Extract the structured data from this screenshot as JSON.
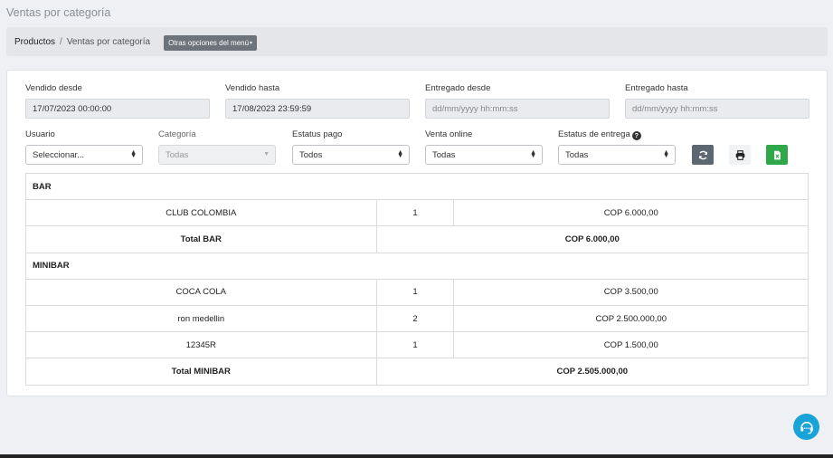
{
  "page": {
    "title": "Ventas por categoría"
  },
  "breadcrumb": {
    "root": "Productos",
    "separator": "/",
    "current": "Ventas por categoría",
    "menu_button": "Otras opciones del menú",
    "menu_caret": "▾"
  },
  "filters": {
    "sold_from": {
      "label": "Vendido desde",
      "value": "17/07/2023 00:00:00"
    },
    "sold_to": {
      "label": "Vendido hasta",
      "value": "17/08/2023 23:59:59"
    },
    "delivered_from": {
      "label": "Entregado desde",
      "placeholder": "dd/mm/yyyy hh:mm:ss"
    },
    "delivered_to": {
      "label": "Entregado hasta",
      "placeholder": "dd/mm/yyyy hh:mm:ss"
    },
    "user": {
      "label": "Usuario",
      "value": "Seleccionar..."
    },
    "category": {
      "label": "Categoría",
      "value": "Todas"
    },
    "payment_status": {
      "label": "Estatus pago",
      "value": "Todos"
    },
    "online_sale": {
      "label": "Venta online",
      "value": "Todas"
    },
    "delivery_status": {
      "label": "Estatus de entrega",
      "value": "Todas",
      "help_icon": "?"
    }
  },
  "icons": {
    "refresh": "refresh-icon",
    "print": "print-icon",
    "excel": "excel-icon",
    "support": "headset-icon"
  },
  "colors": {
    "excel_button": "#2fa84a",
    "refresh_button": "#5d6771",
    "support_button": "#1aa3d9"
  },
  "report": {
    "groups": [
      {
        "name": "BAR",
        "rows": [
          {
            "product": "CLUB COLOMBIA",
            "qty": "1",
            "amount": "COP 6.000,00"
          }
        ],
        "total_label": "Total BAR",
        "total_amount": "COP 6.000,00"
      },
      {
        "name": "MINIBAR",
        "rows": [
          {
            "product": "COCA COLA",
            "qty": "1",
            "amount": "COP 3.500,00"
          },
          {
            "product": "ron medellin",
            "qty": "2",
            "amount": "COP 2.500.000,00"
          },
          {
            "product": "12345R",
            "qty": "1",
            "amount": "COP 1.500,00"
          }
        ],
        "total_label": "Total MINIBAR",
        "total_amount": "COP 2.505.000,00"
      }
    ]
  }
}
